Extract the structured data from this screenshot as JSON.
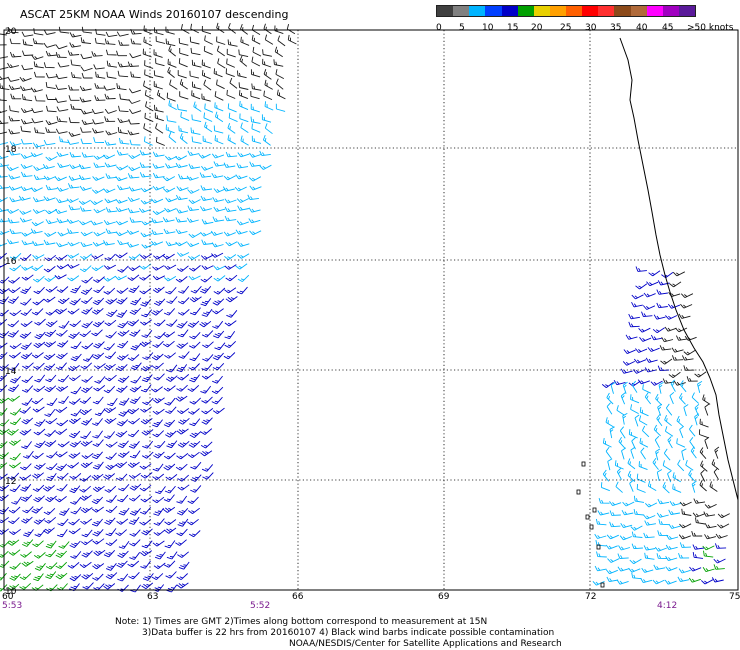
{
  "title": "ASCAT 25KM NOAA Winds 20160107 descending",
  "legend": {
    "colors": [
      "#404040",
      "#808080",
      "#00b4ff",
      "#0040ff",
      "#0000c8",
      "#00a000",
      "#e8d000",
      "#ffa000",
      "#ff6000",
      "#ff0000",
      "#ff3030",
      "#8c4a1a",
      "#b06a3a",
      "#ff00ff",
      "#a000c0",
      "#5a1a9a"
    ],
    "ticks": [
      "0",
      "5",
      "10",
      "15",
      "20",
      "25",
      "30",
      "35",
      "40",
      "45",
      ">50 knots"
    ]
  },
  "latitudes": [
    "20",
    "18",
    "16",
    "14",
    "12",
    "10"
  ],
  "longitudes": [
    "60",
    "63",
    "66",
    "69",
    "72",
    "75"
  ],
  "pass_times": [
    "5:53",
    "5:52",
    "4:12"
  ],
  "notes": [
    "Note: 1) Times are GMT 2)Times along bottom correspond to measurement at 15N",
    "3)Data buffer is 22 hrs from 20160107 4) Black wind barbs indicate possible contamination",
    "NOAA/NESDIS/Center for Satellite Applications and Research"
  ],
  "colors": {
    "contaminated": "#1a1a1a",
    "speed_5_10": "#00b4ff",
    "speed_10_15": "#0000c8",
    "speed_15_20": "#00a000",
    "coastline": "#000000",
    "pass_time": "#7a1a8e"
  }
}
